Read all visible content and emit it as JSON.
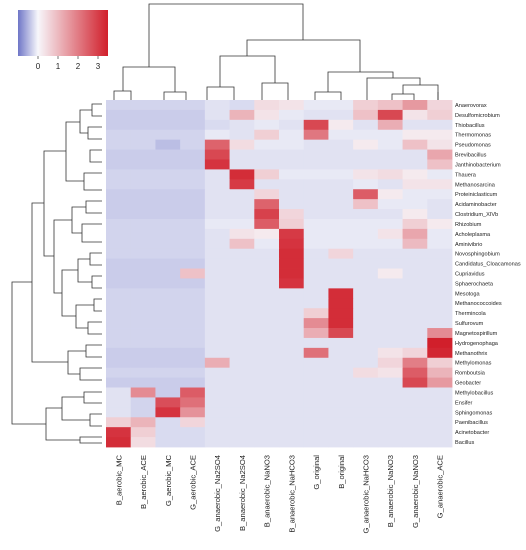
{
  "chart_data": {
    "type": "heatmap",
    "title": "",
    "xlabel": "",
    "ylabel": "",
    "legend": {
      "position": "top-left",
      "ticks": [
        "0",
        "1",
        "2",
        "3"
      ],
      "range": [
        -1,
        3.5
      ],
      "colors": {
        "low": "#6f76c7",
        "mid": "#f7f7fb",
        "high": "#d11f2b"
      }
    },
    "columns": [
      "B_aerobic_MC",
      "B_aerobic_ACE",
      "G_aerobic_MC",
      "G_aerobic_ACE",
      "G_anaerobic_Na2SO4",
      "B_anaerobic_Na2SO4",
      "B_anaerobic_NaNO3",
      "B_anaerobic_NaHCO3",
      "G_original",
      "B_original",
      "G_anaerobic_NaHCO3",
      "B_anaerobic_NaNO3",
      "G_anaerobic_NaNO3",
      "G_anaerobic_ACE"
    ],
    "rows": [
      "Anaerovorax",
      "Desulfomicrobium",
      "Thiobacillus",
      "Thermomonas",
      "Pseudomonas",
      "Brevibacillus",
      "Janthinobacterium",
      "Thauera",
      "Methanosarcina",
      "Proteiniclasticum",
      "Acidaminobacter",
      "Clostridium_XIVb",
      "Rhizobium",
      "Acholeplasma",
      "Aminivibrio",
      "Novosphingobium",
      "Candidatus_Cloacamonas",
      "Cupriavidus",
      "Sphaerochaeta",
      "Mesotoga",
      "Methanococcoides",
      "Thermincola",
      "Sulfurovum",
      "Magnetospirillum",
      "Hydrogenophaga",
      "Methanothrix",
      "Methylomonas",
      "Romboutsia",
      "Geobacter",
      "Methylobacillus",
      "Ensifer",
      "Sphingomonas",
      "Paenibacillus",
      "Acinetobacter",
      "Bacillus"
    ],
    "values": [
      [
        -0.5,
        -0.5,
        -0.5,
        -0.5,
        -0.3,
        -0.4,
        0.4,
        0.3,
        -0.2,
        -0.2,
        0.6,
        0.8,
        1.4,
        0.5
      ],
      [
        -0.6,
        -0.6,
        -0.6,
        -0.6,
        -0.3,
        1.0,
        0.3,
        -0.2,
        -0.3,
        -0.3,
        0.8,
        2.6,
        0.3,
        0.6
      ],
      [
        -0.6,
        -0.6,
        -0.6,
        -0.6,
        -0.4,
        -0.3,
        -0.2,
        -0.3,
        2.6,
        0.2,
        -0.3,
        1.1,
        -0.3,
        -0.3
      ],
      [
        -0.5,
        -0.5,
        -0.5,
        -0.5,
        -0.2,
        -0.3,
        0.6,
        -0.2,
        1.9,
        -0.2,
        -0.2,
        -0.2,
        0.2,
        0.2
      ],
      [
        -0.5,
        -0.5,
        -0.8,
        -0.5,
        2.2,
        0.4,
        -0.2,
        -0.2,
        -0.3,
        -0.3,
        0.2,
        -0.2,
        0.8,
        0.3
      ],
      [
        -0.6,
        -0.6,
        -0.6,
        -0.6,
        2.6,
        -0.3,
        -0.3,
        -0.3,
        -0.3,
        -0.3,
        -0.3,
        -0.3,
        -0.3,
        1.2
      ],
      [
        -0.6,
        -0.6,
        -0.6,
        -0.6,
        2.9,
        -0.3,
        -0.3,
        -0.3,
        -0.3,
        -0.3,
        -0.3,
        -0.3,
        -0.3,
        0.8
      ],
      [
        -0.5,
        -0.5,
        -0.5,
        -0.5,
        -0.3,
        3.0,
        0.6,
        -0.2,
        -0.2,
        -0.2,
        0.3,
        0.4,
        0.2,
        -0.2
      ],
      [
        -0.5,
        -0.5,
        -0.5,
        -0.5,
        -0.3,
        2.8,
        -0.3,
        -0.3,
        -0.3,
        -0.3,
        -0.2,
        -0.3,
        0.3,
        0.3
      ],
      [
        -0.6,
        -0.6,
        -0.6,
        -0.6,
        -0.3,
        -0.3,
        0.5,
        -0.3,
        -0.3,
        -0.3,
        2.3,
        0.2,
        -0.2,
        -0.2
      ],
      [
        -0.6,
        -0.6,
        -0.6,
        -0.6,
        -0.3,
        -0.3,
        2.2,
        -0.3,
        -0.3,
        -0.3,
        0.8,
        -0.2,
        -0.2,
        -0.3
      ],
      [
        -0.6,
        -0.6,
        -0.6,
        -0.6,
        -0.3,
        -0.3,
        2.7,
        0.5,
        -0.3,
        -0.3,
        -0.3,
        -0.3,
        0.2,
        -0.3
      ],
      [
        -0.5,
        -0.5,
        -0.5,
        -0.5,
        -0.2,
        -0.2,
        2.3,
        0.6,
        -0.2,
        -0.2,
        -0.2,
        -0.2,
        0.6,
        0.2
      ],
      [
        -0.5,
        -0.5,
        -0.5,
        -0.5,
        -0.3,
        0.3,
        0.2,
        2.8,
        -0.2,
        -0.2,
        -0.2,
        0.3,
        1.2,
        -0.2
      ],
      [
        -0.5,
        -0.5,
        -0.5,
        -0.5,
        -0.3,
        0.8,
        -0.2,
        2.9,
        -0.2,
        -0.2,
        -0.2,
        -0.2,
        0.9,
        -0.2
      ],
      [
        -0.5,
        -0.5,
        -0.5,
        -0.5,
        -0.3,
        -0.3,
        -0.3,
        3.0,
        -0.3,
        0.5,
        -0.3,
        -0.3,
        -0.3,
        -0.3
      ],
      [
        -0.6,
        -0.6,
        -0.6,
        -0.6,
        -0.3,
        -0.3,
        -0.3,
        3.0,
        -0.3,
        -0.3,
        -0.3,
        -0.3,
        -0.3,
        -0.3
      ],
      [
        -0.6,
        -0.6,
        -0.6,
        0.8,
        -0.3,
        -0.3,
        -0.3,
        3.0,
        -0.3,
        -0.3,
        -0.3,
        0.2,
        -0.3,
        -0.3
      ],
      [
        -0.6,
        -0.6,
        -0.6,
        -0.6,
        -0.3,
        -0.3,
        -0.3,
        2.9,
        -0.3,
        -0.3,
        -0.3,
        -0.3,
        -0.3,
        -0.3
      ],
      [
        -0.5,
        -0.5,
        -0.5,
        -0.5,
        -0.3,
        -0.3,
        -0.3,
        -0.3,
        -0.3,
        3.0,
        -0.3,
        -0.3,
        -0.3,
        -0.3
      ],
      [
        -0.5,
        -0.5,
        -0.5,
        -0.5,
        -0.3,
        -0.3,
        -0.3,
        -0.3,
        -0.3,
        3.0,
        -0.3,
        -0.3,
        -0.3,
        -0.3
      ],
      [
        -0.5,
        -0.5,
        -0.5,
        -0.5,
        -0.3,
        -0.3,
        -0.3,
        -0.3,
        0.6,
        3.0,
        -0.3,
        -0.3,
        -0.3,
        -0.3
      ],
      [
        -0.5,
        -0.5,
        -0.5,
        -0.5,
        -0.3,
        -0.3,
        -0.3,
        -0.3,
        1.6,
        3.0,
        -0.3,
        -0.3,
        -0.3,
        -0.3
      ],
      [
        -0.5,
        -0.5,
        -0.5,
        -0.5,
        -0.3,
        -0.3,
        -0.3,
        -0.3,
        1.1,
        2.6,
        -0.3,
        -0.3,
        -0.3,
        1.6
      ],
      [
        -0.5,
        -0.5,
        -0.5,
        -0.5,
        -0.3,
        -0.3,
        -0.3,
        -0.3,
        -0.3,
        -0.3,
        -0.3,
        -0.3,
        -0.3,
        3.2
      ],
      [
        -0.6,
        -0.6,
        -0.6,
        -0.6,
        -0.3,
        -0.3,
        -0.3,
        -0.3,
        2.0,
        -0.3,
        -0.3,
        0.3,
        0.5,
        3.1
      ],
      [
        -0.6,
        -0.6,
        -0.6,
        -0.6,
        1.1,
        -0.3,
        -0.3,
        -0.3,
        -0.3,
        -0.3,
        -0.3,
        0.5,
        1.8,
        0.6
      ],
      [
        -0.5,
        -0.5,
        -0.5,
        -0.5,
        -0.3,
        -0.3,
        -0.3,
        -0.3,
        -0.3,
        -0.3,
        0.4,
        0.3,
        2.3,
        1.0
      ],
      [
        -0.6,
        -0.6,
        -0.6,
        -0.6,
        -0.3,
        -0.3,
        -0.3,
        -0.3,
        -0.3,
        -0.3,
        -0.3,
        -0.3,
        2.6,
        1.4
      ],
      [
        -0.3,
        1.6,
        -0.6,
        2.3,
        -0.3,
        -0.3,
        -0.3,
        -0.3,
        -0.3,
        -0.3,
        -0.3,
        -0.3,
        -0.3,
        -0.3
      ],
      [
        -0.3,
        -0.5,
        2.5,
        2.0,
        -0.3,
        -0.3,
        -0.3,
        -0.3,
        -0.3,
        -0.3,
        -0.3,
        -0.3,
        -0.3,
        -0.3
      ],
      [
        -0.3,
        -0.5,
        2.9,
        1.5,
        -0.3,
        -0.3,
        -0.3,
        -0.3,
        -0.3,
        -0.3,
        -0.3,
        -0.3,
        -0.3,
        -0.3
      ],
      [
        0.6,
        1.0,
        -0.4,
        0.5,
        -0.3,
        -0.3,
        -0.3,
        -0.3,
        -0.3,
        -0.3,
        -0.3,
        -0.3,
        -0.3,
        -0.3
      ],
      [
        2.9,
        0.6,
        -0.4,
        -0.4,
        -0.3,
        -0.3,
        -0.3,
        -0.3,
        -0.3,
        -0.3,
        -0.3,
        -0.3,
        -0.3,
        -0.3
      ],
      [
        3.0,
        0.4,
        -0.4,
        -0.4,
        -0.3,
        -0.3,
        -0.3,
        -0.3,
        -0.3,
        -0.3,
        -0.3,
        -0.3,
        -0.3,
        -0.3
      ]
    ]
  }
}
